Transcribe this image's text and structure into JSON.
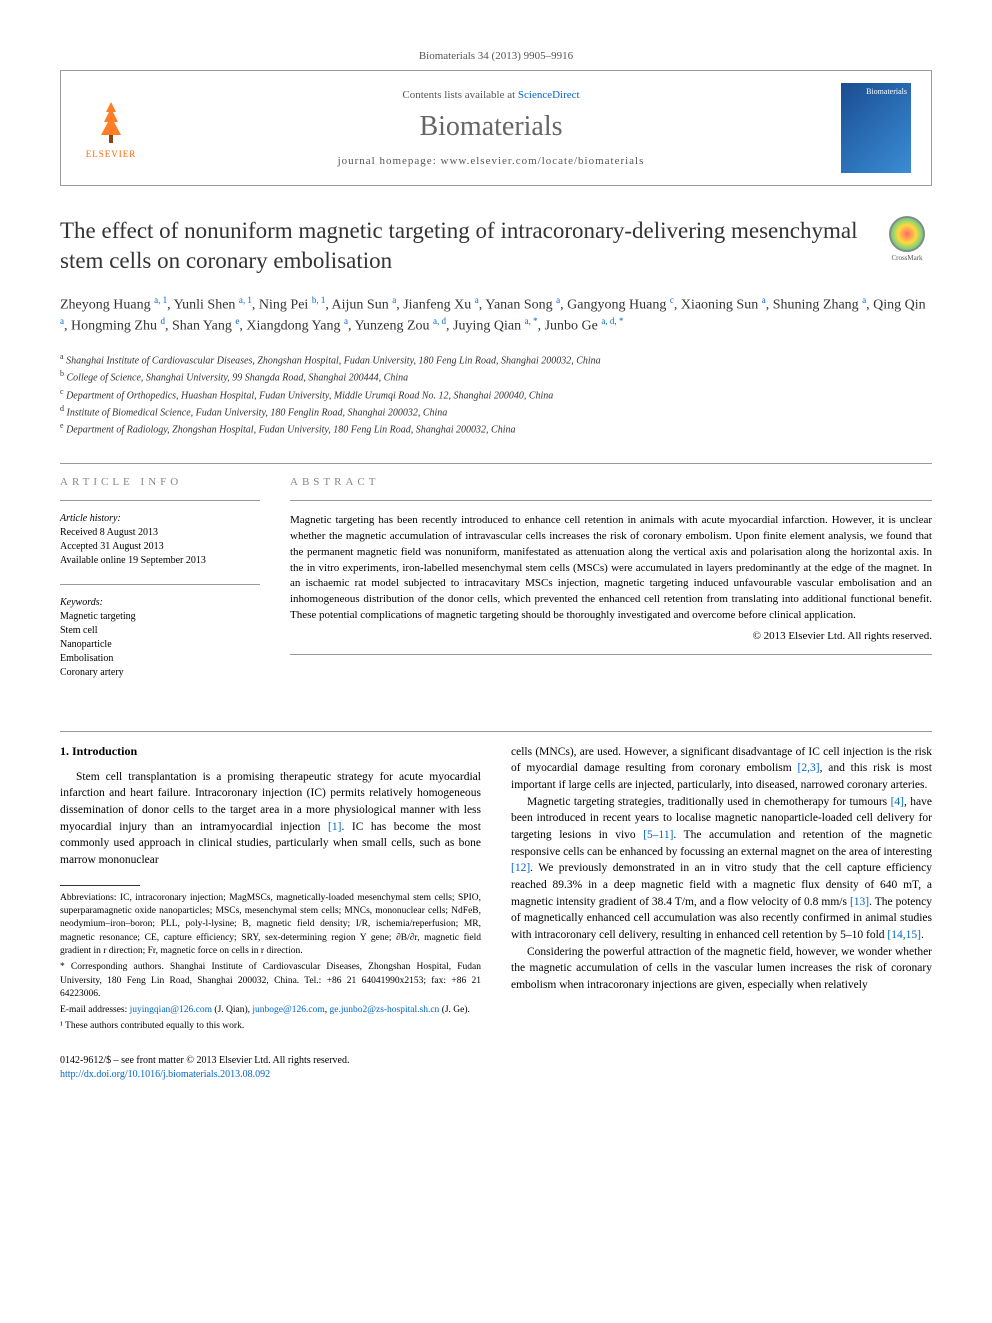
{
  "citation": "Biomaterials 34 (2013) 9905–9916",
  "header": {
    "contents_prefix": "Contents lists available at ",
    "contents_link": "ScienceDirect",
    "journal_name": "Biomaterials",
    "homepage_prefix": "journal homepage: ",
    "homepage_url": "www.elsevier.com/locate/biomaterials",
    "elsevier_label": "ELSEVIER",
    "cover_label": "Biomaterials"
  },
  "crossmark_label": "CrossMark",
  "title": "The effect of nonuniform magnetic targeting of intracoronary-delivering mesenchymal stem cells on coronary embolisation",
  "authors_html": "Zheyong Huang <sup>a, 1</sup>, Yunli Shen <sup>a, 1</sup>, Ning Pei <sup>b, 1</sup>, Aijun Sun <sup>a</sup>, Jianfeng Xu <sup>a</sup>, Yanan Song <sup>a</sup>, Gangyong Huang <sup>c</sup>, Xiaoning Sun <sup>a</sup>, Shuning Zhang <sup>a</sup>, Qing Qin <sup>a</sup>, Hongming Zhu <sup>d</sup>, Shan Yang <sup>e</sup>, Xiangdong Yang <sup>a</sup>, Yunzeng Zou <sup>a, d</sup>, Juying Qian <sup>a, *</sup>, Junbo Ge <sup>a, d, *</sup>",
  "affiliations": [
    {
      "sup": "a",
      "text": "Shanghai Institute of Cardiovascular Diseases, Zhongshan Hospital, Fudan University, 180 Feng Lin Road, Shanghai 200032, China"
    },
    {
      "sup": "b",
      "text": "College of Science, Shanghai University, 99 Shangda Road, Shanghai 200444, China"
    },
    {
      "sup": "c",
      "text": "Department of Orthopedics, Huashan Hospital, Fudan University, Middle Urumqi Road No. 12, Shanghai 200040, China"
    },
    {
      "sup": "d",
      "text": "Institute of Biomedical Science, Fudan University, 180 Fenglin Road, Shanghai 200032, China"
    },
    {
      "sup": "e",
      "text": "Department of Radiology, Zhongshan Hospital, Fudan University, 180 Feng Lin Road, Shanghai 200032, China"
    }
  ],
  "article_info": {
    "heading": "ARTICLE INFO",
    "history_label": "Article history:",
    "history": [
      "Received 8 August 2013",
      "Accepted 31 August 2013",
      "Available online 19 September 2013"
    ],
    "keywords_label": "Keywords:",
    "keywords": [
      "Magnetic targeting",
      "Stem cell",
      "Nanoparticle",
      "Embolisation",
      "Coronary artery"
    ]
  },
  "abstract": {
    "heading": "ABSTRACT",
    "text": "Magnetic targeting has been recently introduced to enhance cell retention in animals with acute myocardial infarction. However, it is unclear whether the magnetic accumulation of intravascular cells increases the risk of coronary embolism. Upon finite element analysis, we found that the permanent magnetic field was nonuniform, manifestated as attenuation along the vertical axis and polarisation along the horizontal axis. In the in vitro experiments, iron-labelled mesenchymal stem cells (MSCs) were accumulated in layers predominantly at the edge of the magnet. In an ischaemic rat model subjected to intracavitary MSCs injection, magnetic targeting induced unfavourable vascular embolisation and an inhomogeneous distribution of the donor cells, which prevented the enhanced cell retention from translating into additional functional benefit. These potential complications of magnetic targeting should be thoroughly investigated and overcome before clinical application.",
    "copyright": "© 2013 Elsevier Ltd. All rights reserved."
  },
  "sections": {
    "intro_heading": "1. Introduction",
    "col1_p1": "Stem cell transplantation is a promising therapeutic strategy for acute myocardial infarction and heart failure. Intracoronary injection (IC) permits relatively homogeneous dissemination of donor cells to the target area in a more physiological manner with less myocardial injury than an intramyocardial injection [1]. IC has become the most commonly used approach in clinical studies, particularly when small cells, such as bone marrow mononuclear",
    "col2_p1": "cells (MNCs), are used. However, a significant disadvantage of IC cell injection is the risk of myocardial damage resulting from coronary embolism [2,3], and this risk is most important if large cells are injected, particularly, into diseased, narrowed coronary arteries.",
    "col2_p2": "Magnetic targeting strategies, traditionally used in chemotherapy for tumours [4], have been introduced in recent years to localise magnetic nanoparticle-loaded cell delivery for targeting lesions in vivo [5–11]. The accumulation and retention of the magnetic responsive cells can be enhanced by focussing an external magnet on the area of interesting [12]. We previously demonstrated in an in vitro study that the cell capture efficiency reached 89.3% in a deep magnetic field with a magnetic flux density of 640 mT, a magnetic intensity gradient of 38.4 T/m, and a flow velocity of 0.8 mm/s [13]. The potency of magnetically enhanced cell accumulation was also recently confirmed in animal studies with intracoronary cell delivery, resulting in enhanced cell retention by 5–10 fold [14,15].",
    "col2_p3": "Considering the powerful attraction of the magnetic field, however, we wonder whether the magnetic accumulation of cells in the vascular lumen increases the risk of coronary embolism when intracoronary injections are given, especially when relatively"
  },
  "footnotes": {
    "abbrev": "Abbreviations: IC, intracoronary injection; MagMSCs, magnetically-loaded mesenchymal stem cells; SPIO, superparamagnetic oxide nanoparticles; MSCs, mesenchymal stem cells; MNCs, mononuclear cells; NdFeB, neodymium–iron–boron; PLL, poly-l-lysine; B, magnetic field density; I/R, ischemia/reperfusion; MR, magnetic resonance; CE, capture efficiency; SRY, sex-determining region Y gene; ∂B/∂r, magnetic field gradient in r direction; Fr, magnetic force on cells in r direction.",
    "corresponding": "* Corresponding authors. Shanghai Institute of Cardiovascular Diseases, Zhongshan Hospital, Fudan University, 180 Feng Lin Road, Shanghai 200032, China. Tel.: +86 21 64041990x2153; fax: +86 21 64223006.",
    "email_label": "E-mail addresses: ",
    "email1": "juyingqian@126.com",
    "email1_who": " (J. Qian), ",
    "email2": "junboge@126.com",
    "email2_sep": ", ",
    "email3": "ge.junbo2@zs-hospital.sh.cn",
    "email3_who": " (J. Ge).",
    "equal": "¹ These authors contributed equally to this work."
  },
  "footer": {
    "line1": "0142-9612/$ – see front matter © 2013 Elsevier Ltd. All rights reserved.",
    "doi": "http://dx.doi.org/10.1016/j.biomaterials.2013.08.092"
  },
  "colors": {
    "link": "#0066cc",
    "elsevier_orange": "#ff6600",
    "heading_gray": "#888",
    "journal_gray": "#666"
  }
}
